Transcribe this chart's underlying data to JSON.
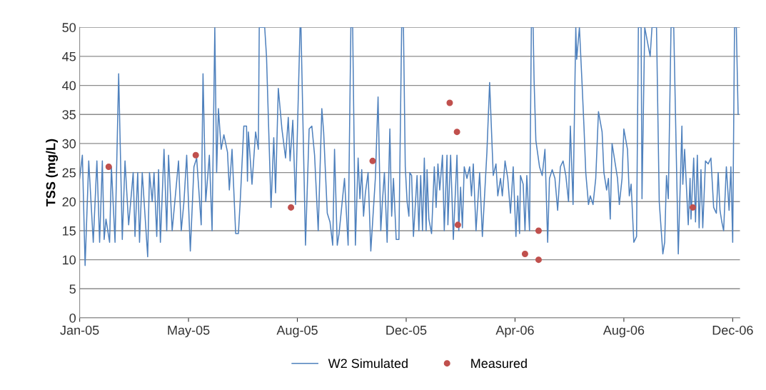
{
  "chart_data": {
    "type": "line",
    "ylabel": "TSS (mg/L)",
    "xlim": [
      "2005-01-01",
      "2006-12-30"
    ],
    "xticks": [
      {
        "value": "2005-01-01",
        "label": "Jan-05"
      },
      {
        "value": "2005-05-01",
        "label": "May-05"
      },
      {
        "value": "2005-08-29",
        "label": "Aug-05"
      },
      {
        "value": "2005-12-27",
        "label": "Dec-05"
      },
      {
        "value": "2006-04-26",
        "label": "Apr-06"
      },
      {
        "value": "2006-08-24",
        "label": "Aug-06"
      },
      {
        "value": "2006-12-22",
        "label": "Dec-06"
      }
    ],
    "ylim": [
      0,
      50
    ],
    "yticks": [
      0,
      5,
      10,
      15,
      20,
      25,
      30,
      35,
      40,
      45,
      50
    ],
    "grid": "y",
    "legend": "bottom",
    "series": [
      {
        "name": "W2 Simulated",
        "color": "#4f81bd",
        "marker": "none",
        "line_style": "solid",
        "x": [
          "2005-01-01",
          "2005-01-04",
          "2005-01-07",
          "2005-01-11",
          "2005-01-16",
          "2005-01-20",
          "2005-01-23",
          "2005-01-26",
          "2005-01-28",
          "2005-01-30",
          "2005-02-03",
          "2005-02-05",
          "2005-02-09",
          "2005-02-13",
          "2005-02-17",
          "2005-02-20",
          "2005-02-24",
          "2005-02-26",
          "2005-03-01",
          "2005-03-03",
          "2005-03-06",
          "2005-03-08",
          "2005-03-11",
          "2005-03-17",
          "2005-03-19",
          "2005-03-22",
          "2005-03-24",
          "2005-03-27",
          "2005-03-29",
          "2005-03-31",
          "2005-04-04",
          "2005-04-07",
          "2005-04-09",
          "2005-04-13",
          "2005-04-20",
          "2005-04-23",
          "2005-04-26",
          "2005-04-29",
          "2005-05-03",
          "2005-05-07",
          "2005-05-10",
          "2005-05-15",
          "2005-05-17",
          "2005-05-20",
          "2005-05-24",
          "2005-05-27",
          "2005-05-30",
          "2005-06-01",
          "2005-06-03",
          "2005-06-06",
          "2005-06-09",
          "2005-06-13",
          "2005-06-15",
          "2005-06-18",
          "2005-06-22",
          "2005-06-25",
          "2005-06-27",
          "2005-07-01",
          "2005-07-04",
          "2005-07-05",
          "2005-07-06",
          "2005-07-10",
          "2005-07-12",
          "2005-07-14",
          "2005-07-17",
          "2005-07-18",
          "2005-07-24",
          "2005-07-26",
          "2005-07-31",
          "2005-08-03",
          "2005-08-05",
          "2005-08-08",
          "2005-08-12",
          "2005-08-16",
          "2005-08-19",
          "2005-08-21",
          "2005-08-24",
          "2005-08-27",
          "2005-09-01",
          "2005-09-02",
          "2005-09-07",
          "2005-09-11",
          "2005-09-14",
          "2005-09-17",
          "2005-09-21",
          "2005-09-25",
          "2005-09-27",
          "2005-10-01",
          "2005-10-04",
          "2005-10-07",
          "2005-10-09",
          "2005-10-12",
          "2005-10-14",
          "2005-10-20",
          "2005-10-24",
          "2005-10-27",
          "2005-10-29",
          "2005-11-01",
          "2005-11-04",
          "2005-11-06",
          "2005-11-08",
          "2005-11-10",
          "2005-11-12",
          "2005-11-15",
          "2005-11-18",
          "2005-11-23",
          "2005-11-26",
          "2005-11-29",
          "2005-12-01",
          "2005-12-03",
          "2005-12-06",
          "2005-12-09",
          "2005-12-11",
          "2005-12-13",
          "2005-12-16",
          "2005-12-19",
          "2005-12-22",
          "2005-12-24",
          "2005-12-26",
          "2005-12-28",
          "2005-12-30",
          "2005-12-31",
          "2006-01-02",
          "2006-01-04",
          "2006-01-08",
          "2006-01-10",
          "2006-01-12",
          "2006-01-14",
          "2006-01-16",
          "2006-01-18",
          "2006-01-19",
          "2006-01-21",
          "2006-01-24",
          "2006-01-27",
          "2006-01-29",
          "2006-01-31",
          "2006-02-02",
          "2006-02-05",
          "2006-02-07",
          "2006-02-10",
          "2006-02-11",
          "2006-02-14",
          "2006-02-17",
          "2006-02-21",
          "2006-02-23",
          "2006-02-25",
          "2006-02-27",
          "2006-03-01",
          "2006-03-04",
          "2006-03-07",
          "2006-03-09",
          "2006-03-11",
          "2006-03-14",
          "2006-03-18",
          "2006-03-21",
          "2006-03-26",
          "2006-03-29",
          "2006-04-02",
          "2006-04-05",
          "2006-04-07",
          "2006-04-10",
          "2006-04-12",
          "2006-04-15",
          "2006-04-18",
          "2006-04-21",
          "2006-04-24",
          "2006-04-27",
          "2006-04-29",
          "2006-05-01",
          "2006-05-02",
          "2006-05-05",
          "2006-05-07",
          "2006-05-09",
          "2006-05-12",
          "2006-05-14",
          "2006-05-16",
          "2006-05-17",
          "2006-05-19",
          "2006-05-23",
          "2006-05-26",
          "2006-05-29",
          "2006-06-01",
          "2006-06-03",
          "2006-06-06",
          "2006-06-09",
          "2006-06-12",
          "2006-06-15",
          "2006-06-18",
          "2006-06-21",
          "2006-06-24",
          "2006-06-26",
          "2006-06-29",
          "2006-07-02",
          "2006-07-03",
          "2006-07-06",
          "2006-07-09",
          "2006-07-11",
          "2006-07-13",
          "2006-07-16",
          "2006-07-18",
          "2006-07-21",
          "2006-07-24",
          "2006-07-27",
          "2006-07-31",
          "2006-08-02",
          "2006-08-05",
          "2006-08-07",
          "2006-08-09",
          "2006-08-11",
          "2006-08-14",
          "2006-08-17",
          "2006-08-19",
          "2006-08-22",
          "2006-08-24",
          "2006-08-28",
          "2006-08-30",
          "2006-09-01",
          "2006-09-04",
          "2006-09-07",
          "2006-09-09",
          "2006-09-12",
          "2006-09-13",
          "2006-09-16",
          "2006-09-22",
          "2006-09-24",
          "2006-09-29",
          "2006-10-02",
          "2006-10-06",
          "2006-10-08",
          "2006-10-10",
          "2006-10-12",
          "2006-10-15",
          "2006-10-18",
          "2006-10-23",
          "2006-10-27",
          "2006-10-28",
          "2006-10-30",
          "2006-11-03",
          "2006-11-05",
          "2006-11-06",
          "2006-11-09",
          "2006-11-11",
          "2006-11-13",
          "2006-11-15",
          "2006-11-17",
          "2006-11-19",
          "2006-11-22",
          "2006-11-25",
          "2006-11-28",
          "2006-12-01",
          "2006-12-04",
          "2006-12-06",
          "2006-12-08",
          "2006-12-10",
          "2006-12-12",
          "2006-12-15",
          "2006-12-18",
          "2006-12-20",
          "2006-12-22",
          "2006-12-24",
          "2006-12-26",
          "2006-12-28"
        ],
        "values": [
          24,
          28,
          9,
          27,
          13,
          27,
          13,
          27,
          13.5,
          17,
          13,
          26,
          13,
          42,
          13.5,
          27,
          16,
          19.5,
          25,
          14,
          25,
          13,
          25,
          10.5,
          25,
          20,
          25,
          14,
          25.5,
          13,
          29,
          15,
          28,
          15,
          27,
          15,
          20,
          28,
          11.5,
          26,
          27.5,
          16,
          42,
          20,
          28,
          15,
          50,
          25,
          36,
          29,
          31.5,
          28.5,
          22,
          29,
          14.5,
          14.5,
          20,
          33,
          33,
          23.5,
          32,
          23,
          27.5,
          32,
          29,
          50,
          50,
          45,
          19,
          31,
          21.5,
          39.5,
          32.5,
          27.5,
          34.5,
          27,
          34,
          19.5,
          50,
          50,
          12.5,
          32.5,
          33,
          28,
          15,
          36,
          32,
          18,
          16.5,
          12.5,
          29,
          12.5,
          14.5,
          24,
          12.5,
          50,
          50,
          12.5,
          27.5,
          20.5,
          25.5,
          17.5,
          21.5,
          25,
          11.5,
          24,
          38,
          15,
          20.5,
          25,
          13,
          32.5,
          17.5,
          24,
          13.5,
          13.5,
          50,
          50,
          26,
          20,
          17.5,
          25,
          24.5,
          14,
          24.5,
          15,
          24.5,
          15,
          27.5,
          15,
          25.5,
          17,
          14.5,
          26,
          19,
          26.5,
          22,
          28,
          15,
          28,
          16,
          28,
          13.5,
          28,
          15,
          22.5,
          15.5,
          26,
          24,
          26,
          21,
          26.5,
          15,
          25,
          14,
          28.5,
          40.5,
          24.5,
          26.5,
          21,
          24,
          21,
          27,
          24,
          18,
          26,
          14,
          21,
          14.5,
          24.5,
          23,
          15,
          24.5,
          15,
          50,
          50,
          41,
          30.5,
          26,
          24.5,
          29,
          13,
          24,
          25.5,
          24,
          18.5,
          26,
          27,
          24.5,
          20,
          33,
          19.5,
          50,
          44.5,
          50,
          40,
          33,
          25,
          19.5,
          21,
          19.5,
          24,
          35.5,
          32,
          25,
          22,
          24,
          17,
          30,
          27,
          24,
          19.5,
          24,
          32.5,
          29,
          21,
          23,
          13,
          14,
          50,
          50,
          20.5,
          50,
          45,
          50,
          50,
          20,
          11,
          13,
          24.5,
          20.5,
          50,
          50,
          11,
          33,
          23,
          29,
          16,
          24,
          17,
          27.5,
          16.5,
          28,
          15.5,
          25.5,
          15.5,
          27,
          26.5,
          27.5,
          19,
          18,
          25,
          18.5,
          16.5,
          15,
          26,
          18.5,
          26,
          13,
          50,
          50,
          35
        ]
      },
      {
        "name": "Measured",
        "type": "scatter",
        "color": "#c0504d",
        "marker": "circle",
        "x": [
          "2005-02-02",
          "2005-05-09",
          "2005-08-22",
          "2005-11-20",
          "2006-02-13",
          "2006-02-21",
          "2006-02-22",
          "2006-05-07",
          "2006-05-22",
          "2006-05-22",
          "2006-11-08"
        ],
        "values": [
          26,
          28,
          19,
          27,
          37,
          32,
          16,
          11,
          15,
          10,
          19
        ]
      }
    ]
  }
}
